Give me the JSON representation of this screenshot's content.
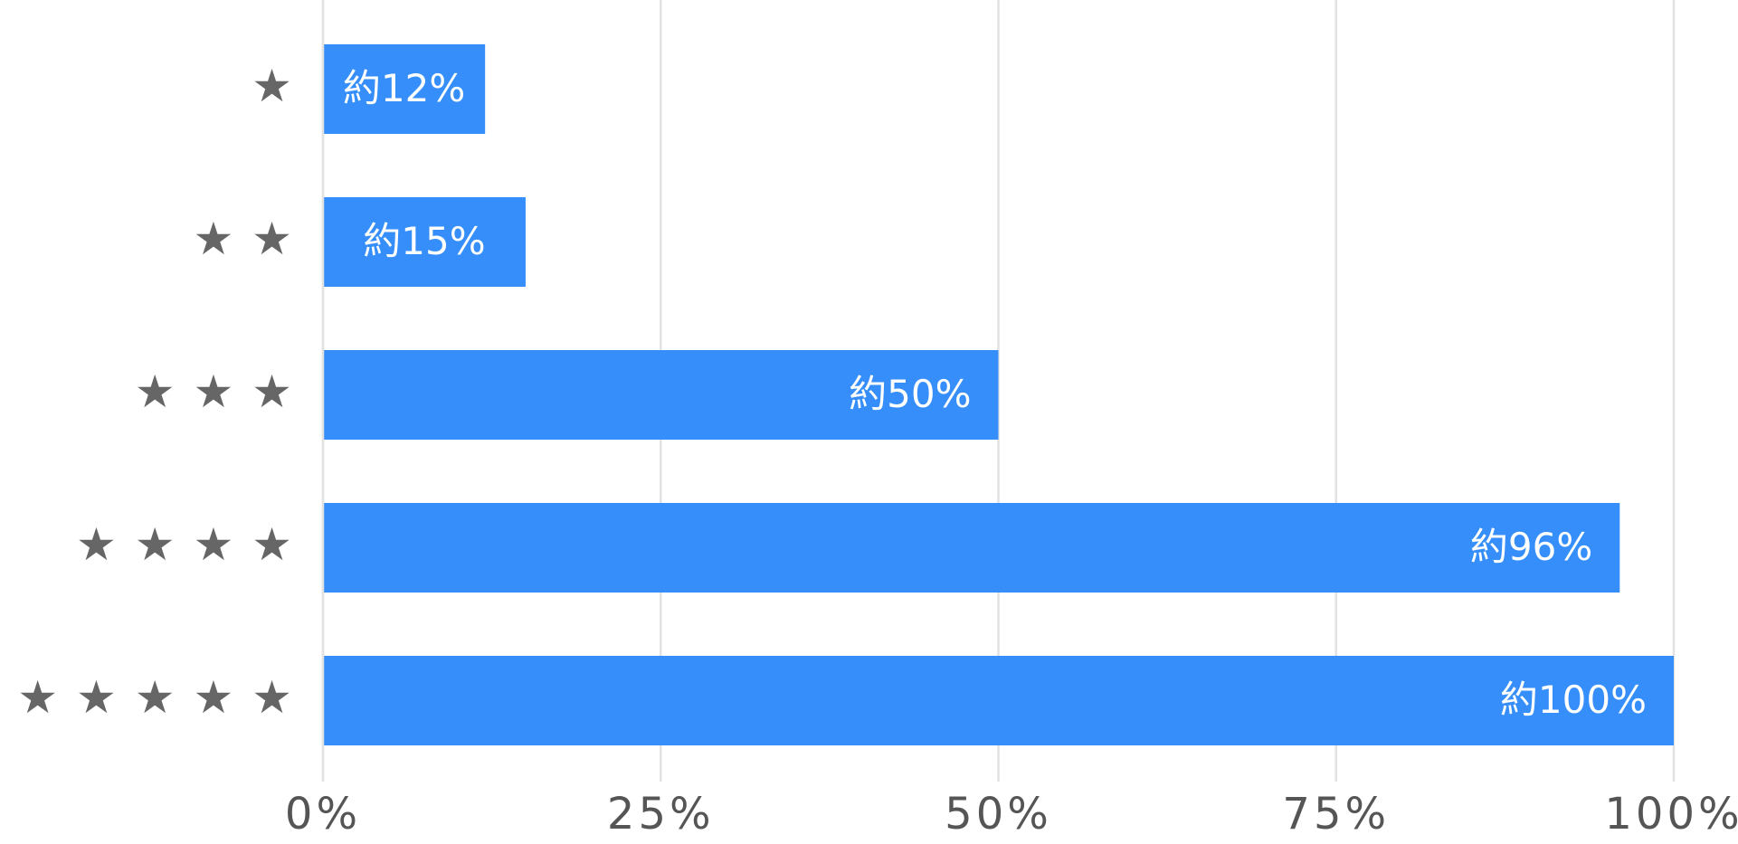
{
  "chart_data": {
    "type": "bar",
    "orientation": "horizontal",
    "categories": [
      "★",
      "★ ★",
      "★ ★ ★",
      "★ ★ ★ ★",
      "★ ★ ★ ★ ★"
    ],
    "values": [
      12,
      15,
      50,
      96,
      100
    ],
    "value_labels": [
      "約12%",
      "約15%",
      "約50%",
      "約96%",
      "約100%"
    ],
    "color": "#358ef9",
    "xlim": [
      0,
      100
    ],
    "xticks": [
      {
        "value": 0,
        "label": "0%"
      },
      {
        "value": 25,
        "label": "25%"
      },
      {
        "value": 50,
        "label": "50%"
      },
      {
        "value": 75,
        "label": "75%"
      },
      {
        "value": 100,
        "label": "100%"
      }
    ],
    "grid": true
  }
}
